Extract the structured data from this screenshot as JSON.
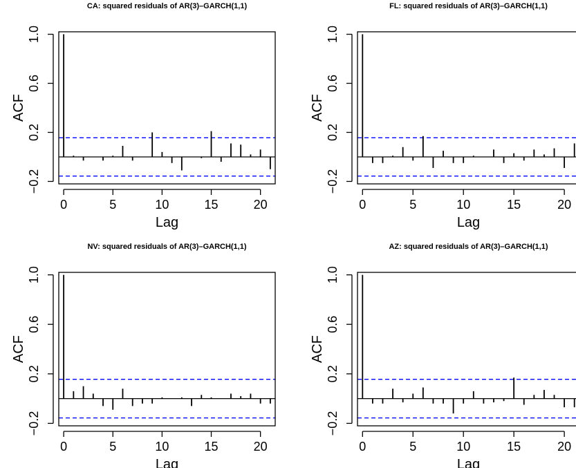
{
  "chart_data": [
    {
      "type": "bar",
      "title": "CA: squared residuals of AR(3)–GARCH(1,1)",
      "xlabel": "Lag",
      "ylabel": "ACF",
      "xlim": [
        -0.5,
        21.5
      ],
      "ylim": [
        -0.22,
        1.02
      ],
      "xticks": [
        0,
        5,
        10,
        15,
        20
      ],
      "yticks": [
        -0.2,
        0.2,
        0.6,
        1.0
      ],
      "ytick_labels": [
        "−0.2",
        "0.2",
        "0.6",
        "1.0"
      ],
      "confidence_band": 0.156,
      "lags": [
        0,
        1,
        2,
        3,
        4,
        5,
        6,
        7,
        8,
        9,
        10,
        11,
        12,
        13,
        14,
        15,
        16,
        17,
        18,
        19,
        20,
        21
      ],
      "values": [
        1.0,
        0.01,
        -0.03,
        0.0,
        -0.03,
        0.01,
        0.09,
        -0.03,
        0.0,
        0.2,
        0.04,
        -0.05,
        -0.11,
        0.0,
        -0.01,
        0.21,
        -0.04,
        0.11,
        0.1,
        0.02,
        0.06,
        -0.1
      ]
    },
    {
      "type": "bar",
      "title": "FL: squared residuals of AR(3)–GARCH(1,1)",
      "xlabel": "Lag",
      "ylabel": "ACF",
      "xlim": [
        -0.5,
        21.5
      ],
      "ylim": [
        -0.22,
        1.02
      ],
      "xticks": [
        0,
        5,
        10,
        15,
        20
      ],
      "yticks": [
        -0.2,
        0.2,
        0.6,
        1.0
      ],
      "ytick_labels": [
        "−0.2",
        "0.2",
        "0.6",
        "1.0"
      ],
      "confidence_band": 0.156,
      "lags": [
        0,
        1,
        2,
        3,
        4,
        5,
        6,
        7,
        8,
        9,
        10,
        11,
        12,
        13,
        14,
        15,
        16,
        17,
        18,
        19,
        20,
        21
      ],
      "values": [
        1.0,
        -0.05,
        -0.05,
        0.01,
        0.08,
        -0.03,
        0.17,
        -0.09,
        0.05,
        -0.05,
        -0.05,
        0.01,
        0.0,
        0.06,
        -0.05,
        0.03,
        -0.03,
        0.06,
        0.02,
        0.07,
        -0.09,
        0.11
      ]
    },
    {
      "type": "bar",
      "title": "NV: squared residuals of AR(3)–GARCH(1,1)",
      "xlabel": "Lag",
      "ylabel": "ACF",
      "xlim": [
        -0.5,
        21.5
      ],
      "ylim": [
        -0.22,
        1.02
      ],
      "xticks": [
        0,
        5,
        10,
        15,
        20
      ],
      "yticks": [
        -0.2,
        0.2,
        0.6,
        1.0
      ],
      "ytick_labels": [
        "−0.2",
        "0.2",
        "0.6",
        "1.0"
      ],
      "confidence_band": 0.156,
      "lags": [
        0,
        1,
        2,
        3,
        4,
        5,
        6,
        7,
        8,
        9,
        10,
        11,
        12,
        13,
        14,
        15,
        16,
        17,
        18,
        19,
        20,
        21
      ],
      "values": [
        1.0,
        0.06,
        0.1,
        0.04,
        -0.06,
        -0.09,
        0.08,
        -0.06,
        -0.04,
        -0.04,
        0.01,
        0.0,
        0.01,
        -0.06,
        0.03,
        0.01,
        0.0,
        0.04,
        0.02,
        0.04,
        -0.04,
        -0.04
      ]
    },
    {
      "type": "bar",
      "title": "AZ: squared residuals of AR(3)–GARCH(1,1)",
      "xlabel": "Lag",
      "ylabel": "ACF",
      "xlim": [
        -0.5,
        21.5
      ],
      "ylim": [
        -0.22,
        1.02
      ],
      "xticks": [
        0,
        5,
        10,
        15,
        20
      ],
      "yticks": [
        -0.2,
        0.2,
        0.6,
        1.0
      ],
      "ytick_labels": [
        "−0.2",
        "0.2",
        "0.6",
        "1.0"
      ],
      "confidence_band": 0.156,
      "lags": [
        0,
        1,
        2,
        3,
        4,
        5,
        6,
        7,
        8,
        9,
        10,
        11,
        12,
        13,
        14,
        15,
        16,
        17,
        18,
        19,
        20,
        21
      ],
      "values": [
        1.0,
        -0.04,
        -0.04,
        0.08,
        -0.03,
        0.04,
        0.09,
        -0.04,
        -0.04,
        -0.12,
        -0.04,
        0.06,
        -0.04,
        -0.03,
        -0.02,
        0.17,
        -0.05,
        0.03,
        0.07,
        0.03,
        -0.07,
        -0.07
      ]
    }
  ],
  "colors": {
    "bars": "#000000",
    "confidence_lines": "#0000ff",
    "frame": "#000000",
    "background": "#ffffff"
  }
}
